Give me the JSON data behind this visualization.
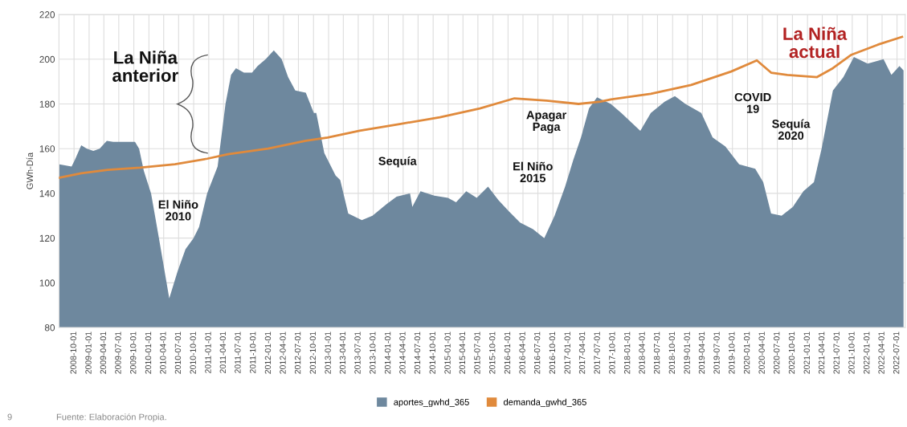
{
  "chart_data": {
    "type": "area",
    "ylabel": "GWh-Día",
    "xlim": [
      "2008-07-01",
      "2022-08-20"
    ],
    "ylim": [
      80,
      220
    ],
    "yticks": [
      80,
      100,
      120,
      140,
      160,
      180,
      200,
      220
    ],
    "xticks": [
      {
        "value": "2008-10-01",
        "label": "2008-10-01"
      },
      {
        "value": "2009-01-01",
        "label": "2009-01-01"
      },
      {
        "value": "2009-04-01",
        "label": "2009-04-01"
      },
      {
        "value": "2009-07-01",
        "label": "2009-07-01"
      },
      {
        "value": "2009-10-01",
        "label": "2009-10-01"
      },
      {
        "value": "2010-01-01",
        "label": "2010-01-01"
      },
      {
        "value": "2010-04-01",
        "label": "2010-04-01"
      },
      {
        "value": "2010-07-01",
        "label": "2010-07-01"
      },
      {
        "value": "2010-10-01",
        "label": "2010-10-01"
      },
      {
        "value": "2011-01-01",
        "label": "2011-01-01"
      },
      {
        "value": "2011-04-01",
        "label": "2011-04-01"
      },
      {
        "value": "2011-07-01",
        "label": "2011-07-01"
      },
      {
        "value": "2011-10-01",
        "label": "2011-10-01"
      },
      {
        "value": "2012-01-01",
        "label": "2012-01-01"
      },
      {
        "value": "2012-04-01",
        "label": "2012-04-01"
      },
      {
        "value": "2012-07-01",
        "label": "2012-07-01"
      },
      {
        "value": "2012-10-01",
        "label": "2012-10-01"
      },
      {
        "value": "2013-01-01",
        "label": "2013-01-01"
      },
      {
        "value": "2013-04-01",
        "label": "2013-04-01"
      },
      {
        "value": "2013-07-01",
        "label": "2013-07-01"
      },
      {
        "value": "2013-10-01",
        "label": "2013-10-01"
      },
      {
        "value": "2014-01-01",
        "label": "2014-01-01"
      },
      {
        "value": "2014-04-01",
        "label": "2014-04-01"
      },
      {
        "value": "2014-07-01",
        "label": "2014-07-01"
      },
      {
        "value": "2014-10-01",
        "label": "2014-10-01"
      },
      {
        "value": "2015-01-01",
        "label": "2015-01-01"
      },
      {
        "value": "2015-04-01",
        "label": "2015-04-01"
      },
      {
        "value": "2015-07-01",
        "label": "2015-07-01"
      },
      {
        "value": "2015-10-01",
        "label": "2015-10-01"
      },
      {
        "value": "2016-01-01",
        "label": "2016-01-01"
      },
      {
        "value": "2016-04-01",
        "label": "2016-04-01"
      },
      {
        "value": "2016-07-01",
        "label": "2016-07-01"
      },
      {
        "value": "2016-10-01",
        "label": "2016-10-01"
      },
      {
        "value": "2017-01-01",
        "label": "2017-01-01"
      },
      {
        "value": "2017-04-01",
        "label": "2017-04-01"
      },
      {
        "value": "2017-07-01",
        "label": "2017-07-01"
      },
      {
        "value": "2017-10-01",
        "label": "2017-10-01"
      },
      {
        "value": "2018-01-01",
        "label": "2018-01-01"
      },
      {
        "value": "2018-04-01",
        "label": "2018-04-01"
      },
      {
        "value": "2018-07-01",
        "label": "2018-07-01"
      },
      {
        "value": "2018-10-01",
        "label": "2018-10-01"
      },
      {
        "value": "2019-01-01",
        "label": "2019-01-01"
      },
      {
        "value": "2019-04-01",
        "label": "2019-04-01"
      },
      {
        "value": "2019-07-01",
        "label": "2019-07-01"
      },
      {
        "value": "2019-10-01",
        "label": "2019-10-01"
      },
      {
        "value": "2020-01-01",
        "label": "2020-01-01"
      },
      {
        "value": "2020-04-01",
        "label": "2020-04-01"
      },
      {
        "value": "2020-07-01",
        "label": "2020-07-01"
      },
      {
        "value": "2020-10-01",
        "label": "2020-10-01"
      },
      {
        "value": "2021-01-01",
        "label": "2021-01-01"
      },
      {
        "value": "2021-04-01",
        "label": "2021-04-01"
      },
      {
        "value": "2021-07-01",
        "label": "2021-07-01"
      },
      {
        "value": "2021-10-01",
        "label": "2021-10-01"
      },
      {
        "value": "2022-01-01",
        "label": "2022-01-01"
      },
      {
        "value": "2022-04-01",
        "label": "2022-04-01"
      },
      {
        "value": "2022-07-01",
        "label": "2022-07-01"
      }
    ],
    "grid": true,
    "legend": "bottom",
    "series": [
      {
        "name": "aportes_gwhd_365",
        "color": "#6e889e",
        "x": [
          "2008-07-04",
          "2008-09-16",
          "2008-10-06",
          "2008-11-14",
          "2008-12-18",
          "2009-01-27",
          "2009-03-06",
          "2009-04-19",
          "2009-05-28",
          "2009-10-08",
          "2009-11-02",
          "2009-12-01",
          "2010-01-14",
          "2010-03-03",
          "2010-05-05",
          "2010-06-24",
          "2010-08-12",
          "2010-09-30",
          "2010-11-03",
          "2010-12-22",
          "2011-02-24",
          "2011-04-13",
          "2011-05-17",
          "2011-06-16",
          "2011-08-04",
          "2011-09-22",
          "2011-10-26",
          "2011-12-14",
          "2012-02-02",
          "2012-03-21",
          "2012-04-29",
          "2012-06-12",
          "2012-08-15",
          "2012-10-03",
          "2012-10-18",
          "2012-12-06",
          "2013-02-13",
          "2013-03-13",
          "2013-05-01",
          "2013-07-23",
          "2013-09-26",
          "2013-12-18",
          "2014-02-20",
          "2014-05-13",
          "2014-05-27",
          "2014-07-16",
          "2014-10-08",
          "2014-12-30",
          "2015-02-18",
          "2015-04-21",
          "2015-06-24",
          "2015-09-01",
          "2015-11-03",
          "2016-01-06",
          "2016-03-14",
          "2016-06-01",
          "2016-08-09",
          "2016-10-11",
          "2016-12-14",
          "2017-02-02",
          "2017-03-21",
          "2017-05-09",
          "2017-06-27",
          "2017-09-19",
          "2017-11-22",
          "2018-03-18",
          "2018-05-21",
          "2018-08-13",
          "2018-10-15",
          "2018-12-18",
          "2019-03-25",
          "2019-06-02",
          "2019-08-19",
          "2019-11-11",
          "2020-02-17",
          "2020-04-06",
          "2020-05-24",
          "2020-07-27",
          "2020-10-04",
          "2020-12-07",
          "2021-02-09",
          "2021-03-28",
          "2021-06-05",
          "2021-08-08",
          "2021-10-11",
          "2022-01-03",
          "2022-04-10",
          "2022-05-28",
          "2022-07-16",
          "2022-08-10"
        ],
        "values": [
          153,
          152,
          155,
          161.5,
          160,
          159,
          160,
          163.5,
          163,
          163,
          160,
          150,
          140,
          120,
          93,
          105,
          115,
          120,
          125,
          140,
          152,
          180,
          193,
          196,
          194,
          194,
          197,
          200,
          204,
          200,
          192,
          186,
          185,
          176,
          176,
          158,
          148,
          146,
          131,
          128,
          130,
          135,
          138.5,
          140,
          134,
          141,
          139,
          138,
          136,
          141,
          138,
          143,
          137,
          132,
          127,
          124,
          120,
          130,
          143,
          155,
          165,
          178,
          183,
          180,
          176,
          168,
          176,
          181,
          183.5,
          180,
          176,
          165,
          161,
          153,
          151,
          145,
          131,
          130,
          134,
          141,
          145,
          160,
          186,
          192,
          201,
          198,
          200,
          193,
          197,
          195
        ]
      },
      {
        "name": "demanda_gwhd_365",
        "type": "line",
        "color": "#e08a3c",
        "x": [
          "2008-07-04",
          "2008-11-14",
          "2009-04-24",
          "2009-11-07",
          "2010-06-09",
          "2010-12-22",
          "2011-04-28",
          "2011-12-29",
          "2012-08-15",
          "2012-12-26",
          "2013-07-09",
          "2014-03-10",
          "2014-11-11",
          "2015-07-13",
          "2016-02-09",
          "2016-08-23",
          "2017-03-06",
          "2017-07-17",
          "2017-09-19",
          "2018-05-21",
          "2019-01-22",
          "2019-09-23",
          "2020-02-27",
          "2020-05-24",
          "2020-08-31",
          "2021-02-28",
          "2021-06-05",
          "2021-09-26",
          "2022-03-06",
          "2022-08-01"
        ],
        "values": [
          147,
          149,
          150.5,
          151.5,
          153,
          155.5,
          157.5,
          160,
          163.5,
          165,
          168,
          171,
          174,
          178,
          182.5,
          181.5,
          180,
          181,
          182,
          184.5,
          188.5,
          194.5,
          199.5,
          194,
          193,
          192,
          196,
          202,
          206.5,
          210
        ]
      }
    ],
    "annotations": [
      "La Niña\nanterior",
      "El Niño\n2010",
      "Sequía",
      "Apagar\nPaga",
      "El Niño\n2015",
      "COVID\n19",
      "Sequía\n2020",
      "La Niña\nactual",
      "Fuente: Elaboración Propia.",
      "9"
    ]
  }
}
